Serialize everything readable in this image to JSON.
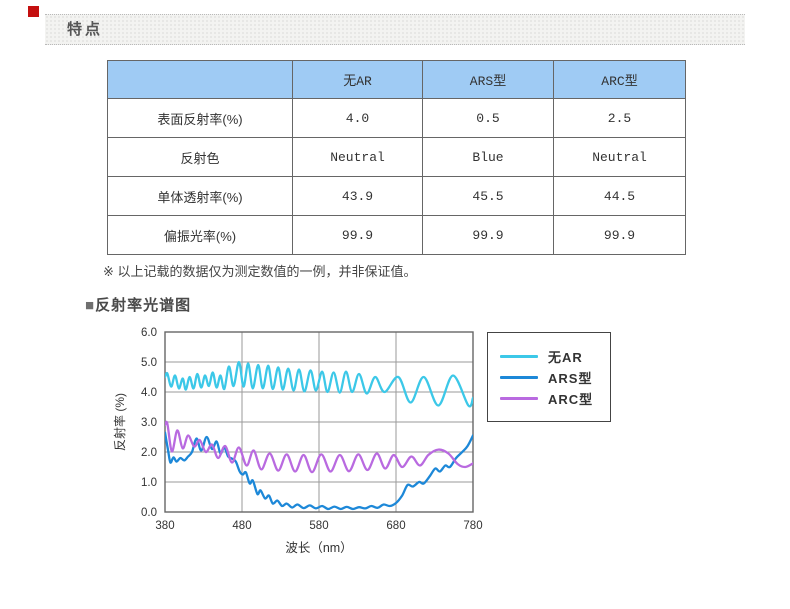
{
  "page": {
    "marker_color": "#c40f0f"
  },
  "header": {
    "title": "特点"
  },
  "table": {
    "header_bg": "#9fcbf4",
    "columns": [
      "",
      "无AR",
      "ARS型",
      "ARC型"
    ],
    "rows": [
      {
        "label": "表面反射率(%)",
        "values": [
          "4.0",
          "0.5",
          "2.5"
        ]
      },
      {
        "label": "反射色",
        "values": [
          "Neutral",
          "Blue",
          "Neutral"
        ]
      },
      {
        "label": "单体透射率(%)",
        "values": [
          "43.9",
          "45.5",
          "44.5"
        ]
      },
      {
        "label": "偏振光率(%)",
        "values": [
          "99.9",
          "99.9",
          "99.9"
        ]
      }
    ]
  },
  "note": {
    "text": "※ 以上记载的数据仅为测定数值的一例，并非保证值。"
  },
  "section": {
    "marker": "■",
    "title": "反射率光谱图"
  },
  "chart_data": {
    "type": "line",
    "title": "",
    "xlabel": "波长（nm）",
    "ylabel": "反射率 (%)",
    "xlim": [
      380,
      780
    ],
    "ylim": [
      0,
      6
    ],
    "xticks": [
      380,
      480,
      580,
      680,
      780
    ],
    "yticks": [
      0,
      1,
      2,
      3,
      4,
      5,
      6
    ],
    "grid": true,
    "grid_color": "#9a9a9a",
    "axis_color": "#666666",
    "legend_position": "right-top",
    "series": [
      {
        "name": "无AR",
        "color": "#3cc8e8",
        "points": [
          [
            380,
            4.5
          ],
          [
            383,
            4.62
          ],
          [
            388,
            4.18
          ],
          [
            393,
            4.55
          ],
          [
            398,
            4.12
          ],
          [
            403,
            4.45
          ],
          [
            407,
            4.08
          ],
          [
            412,
            4.5
          ],
          [
            417,
            4.12
          ],
          [
            422,
            4.6
          ],
          [
            427,
            4.15
          ],
          [
            432,
            4.55
          ],
          [
            437,
            4.2
          ],
          [
            442,
            4.65
          ],
          [
            447,
            4.15
          ],
          [
            452,
            4.55
          ],
          [
            457,
            4.1
          ],
          [
            463,
            4.85
          ],
          [
            469,
            4.2
          ],
          [
            476,
            5.0
          ],
          [
            482,
            4.18
          ],
          [
            488,
            4.95
          ],
          [
            494,
            4.12
          ],
          [
            501,
            4.9
          ],
          [
            507,
            4.12
          ],
          [
            514,
            4.88
          ],
          [
            520,
            4.1
          ],
          [
            527,
            4.82
          ],
          [
            533,
            4.08
          ],
          [
            540,
            4.78
          ],
          [
            547,
            4.05
          ],
          [
            554,
            4.75
          ],
          [
            561,
            4.02
          ],
          [
            569,
            4.72
          ],
          [
            576,
            4.05
          ],
          [
            584,
            4.68
          ],
          [
            591,
            4.0
          ],
          [
            599,
            4.65
          ],
          [
            607,
            3.98
          ],
          [
            615,
            4.68
          ],
          [
            623,
            4.0
          ],
          [
            632,
            4.6
          ],
          [
            642,
            3.95
          ],
          [
            653,
            4.5
          ],
          [
            665,
            4.0
          ],
          [
            683,
            4.5
          ],
          [
            699,
            3.65
          ],
          [
            716,
            4.5
          ],
          [
            735,
            3.55
          ],
          [
            754,
            4.55
          ],
          [
            774,
            3.55
          ],
          [
            780,
            3.8
          ]
        ]
      },
      {
        "name": "ARS型",
        "color": "#1d88d8",
        "points": [
          [
            380,
            2.65
          ],
          [
            384,
            2.05
          ],
          [
            387,
            1.65
          ],
          [
            391,
            1.82
          ],
          [
            395,
            1.68
          ],
          [
            400,
            1.8
          ],
          [
            405,
            1.72
          ],
          [
            410,
            1.85
          ],
          [
            415,
            2.0
          ],
          [
            421,
            2.45
          ],
          [
            427,
            2.05
          ],
          [
            434,
            2.5
          ],
          [
            441,
            2.1
          ],
          [
            447,
            2.35
          ],
          [
            452,
            1.95
          ],
          [
            457,
            2.15
          ],
          [
            462,
            1.85
          ],
          [
            467,
            1.78
          ],
          [
            472,
            1.68
          ],
          [
            477,
            1.35
          ],
          [
            481,
            1.25
          ],
          [
            485,
            1.32
          ],
          [
            490,
            0.95
          ],
          [
            494,
            1.05
          ],
          [
            500,
            0.6
          ],
          [
            504,
            0.72
          ],
          [
            510,
            0.45
          ],
          [
            515,
            0.55
          ],
          [
            520,
            0.28
          ],
          [
            526,
            0.38
          ],
          [
            532,
            0.2
          ],
          [
            538,
            0.28
          ],
          [
            545,
            0.15
          ],
          [
            552,
            0.25
          ],
          [
            560,
            0.13
          ],
          [
            568,
            0.22
          ],
          [
            576,
            0.12
          ],
          [
            584,
            0.2
          ],
          [
            592,
            0.1
          ],
          [
            600,
            0.18
          ],
          [
            608,
            0.1
          ],
          [
            616,
            0.17
          ],
          [
            624,
            0.1
          ],
          [
            632,
            0.16
          ],
          [
            640,
            0.12
          ],
          [
            648,
            0.2
          ],
          [
            656,
            0.14
          ],
          [
            664,
            0.25
          ],
          [
            672,
            0.2
          ],
          [
            680,
            0.3
          ],
          [
            688,
            0.55
          ],
          [
            695,
            0.9
          ],
          [
            702,
            0.85
          ],
          [
            710,
            1.0
          ],
          [
            716,
            0.95
          ],
          [
            724,
            1.2
          ],
          [
            731,
            1.45
          ],
          [
            737,
            1.35
          ],
          [
            744,
            1.55
          ],
          [
            750,
            1.5
          ],
          [
            758,
            1.8
          ],
          [
            766,
            2.0
          ],
          [
            773,
            2.2
          ],
          [
            780,
            2.55
          ]
        ]
      },
      {
        "name": "ARC型",
        "color": "#b96ae0",
        "points": [
          [
            380,
            2.9
          ],
          [
            383,
            2.95
          ],
          [
            389,
            2.02
          ],
          [
            396,
            2.72
          ],
          [
            403,
            2.12
          ],
          [
            410,
            2.55
          ],
          [
            418,
            2.18
          ],
          [
            425,
            2.4
          ],
          [
            433,
            2.0
          ],
          [
            441,
            2.25
          ],
          [
            449,
            1.8
          ],
          [
            458,
            2.2
          ],
          [
            467,
            1.65
          ],
          [
            476,
            2.15
          ],
          [
            486,
            1.55
          ],
          [
            495,
            2.05
          ],
          [
            505,
            1.42
          ],
          [
            516,
            1.95
          ],
          [
            527,
            1.38
          ],
          [
            538,
            1.92
          ],
          [
            549,
            1.35
          ],
          [
            560,
            1.9
          ],
          [
            571,
            1.33
          ],
          [
            583,
            1.92
          ],
          [
            595,
            1.35
          ],
          [
            607,
            1.9
          ],
          [
            619,
            1.36
          ],
          [
            631,
            1.92
          ],
          [
            643,
            1.4
          ],
          [
            655,
            1.95
          ],
          [
            666,
            1.45
          ],
          [
            677,
            1.9
          ],
          [
            688,
            1.5
          ],
          [
            700,
            1.85
          ],
          [
            711,
            1.55
          ],
          [
            722,
            1.9
          ],
          [
            735,
            2.08
          ],
          [
            748,
            1.95
          ],
          [
            760,
            1.6
          ],
          [
            770,
            1.5
          ],
          [
            780,
            1.62
          ]
        ]
      }
    ]
  }
}
